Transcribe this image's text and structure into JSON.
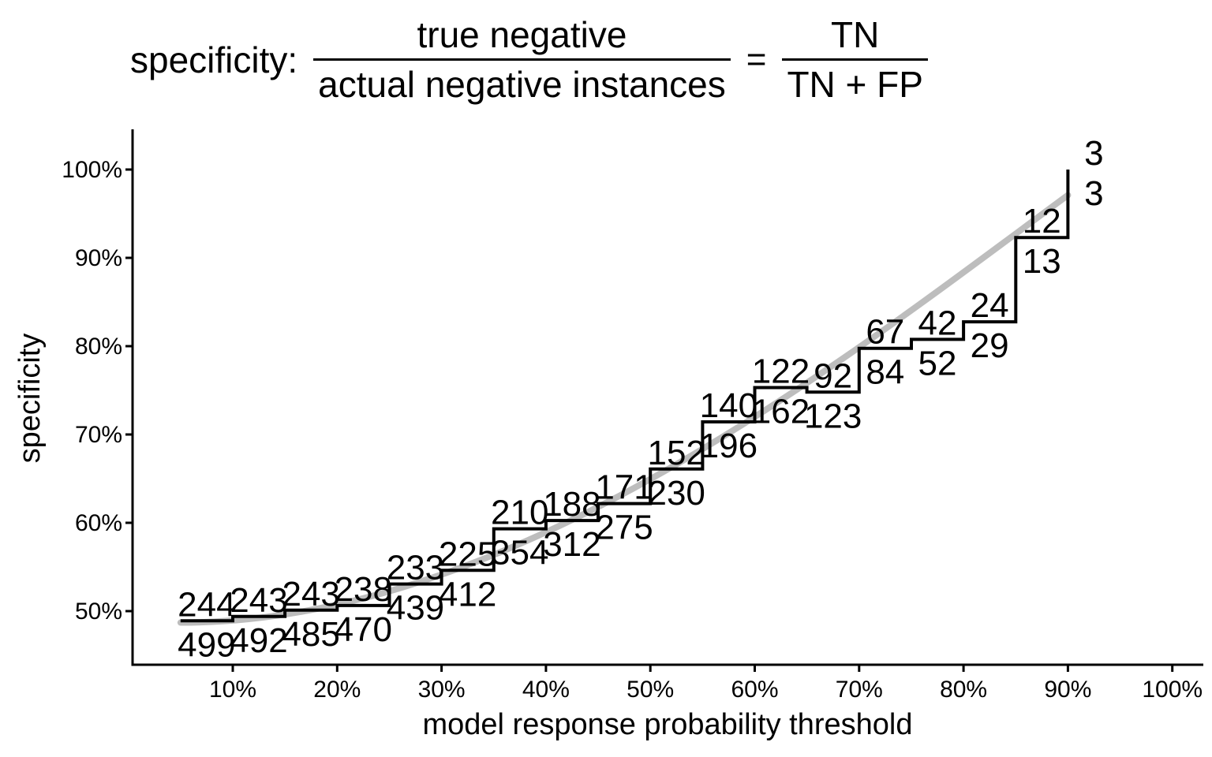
{
  "title": {
    "label": "specificity:",
    "fraction_words": {
      "numerator": "true negative",
      "denominator": "actual negative instances"
    },
    "equals": "=",
    "fraction_symbols": {
      "numerator": "TN",
      "denominator": "TN + FP"
    }
  },
  "chart_data": {
    "type": "step",
    "title": "specificity: true negative / actual negative instances = TN / (TN + FP)",
    "xlabel": "model response probability threshold",
    "ylabel": "specificity",
    "x_ticks": [
      {
        "value": 10,
        "label": "10%"
      },
      {
        "value": 20,
        "label": "20%"
      },
      {
        "value": 30,
        "label": "30%"
      },
      {
        "value": 40,
        "label": "40%"
      },
      {
        "value": 50,
        "label": "50%"
      },
      {
        "value": 60,
        "label": "60%"
      },
      {
        "value": 70,
        "label": "70%"
      },
      {
        "value": 80,
        "label": "80%"
      },
      {
        "value": 90,
        "label": "90%"
      },
      {
        "value": 100,
        "label": "100%"
      }
    ],
    "y_ticks": [
      {
        "value": 50,
        "label": "50%"
      },
      {
        "value": 60,
        "label": "60%"
      },
      {
        "value": 70,
        "label": "70%"
      },
      {
        "value": 80,
        "label": "80%"
      },
      {
        "value": 90,
        "label": "90%"
      },
      {
        "value": 100,
        "label": "100%"
      }
    ],
    "x_range_pct": [
      0,
      103
    ],
    "y_range_pct": [
      44,
      104
    ],
    "grid": "off",
    "legend": "none",
    "step_color": "#000000",
    "steps": [
      {
        "threshold_pct": 5,
        "tn": 244,
        "tn_plus_fp": 499
      },
      {
        "threshold_pct": 10,
        "tn": 243,
        "tn_plus_fp": 492
      },
      {
        "threshold_pct": 15,
        "tn": 243,
        "tn_plus_fp": 485
      },
      {
        "threshold_pct": 20,
        "tn": 238,
        "tn_plus_fp": 470
      },
      {
        "threshold_pct": 25,
        "tn": 233,
        "tn_plus_fp": 439
      },
      {
        "threshold_pct": 30,
        "tn": 225,
        "tn_plus_fp": 412
      },
      {
        "threshold_pct": 35,
        "tn": 210,
        "tn_plus_fp": 354
      },
      {
        "threshold_pct": 40,
        "tn": 188,
        "tn_plus_fp": 312
      },
      {
        "threshold_pct": 45,
        "tn": 171,
        "tn_plus_fp": 275
      },
      {
        "threshold_pct": 50,
        "tn": 152,
        "tn_plus_fp": 230
      },
      {
        "threshold_pct": 55,
        "tn": 140,
        "tn_plus_fp": 196
      },
      {
        "threshold_pct": 60,
        "tn": 122,
        "tn_plus_fp": 162
      },
      {
        "threshold_pct": 65,
        "tn": 92,
        "tn_plus_fp": 123
      },
      {
        "threshold_pct": 70,
        "tn": 67,
        "tn_plus_fp": 84
      },
      {
        "threshold_pct": 75,
        "tn": 42,
        "tn_plus_fp": 52
      },
      {
        "threshold_pct": 80,
        "tn": 24,
        "tn_plus_fp": 29
      },
      {
        "threshold_pct": 85,
        "tn": 12,
        "tn_plus_fp": 13
      },
      {
        "threshold_pct": 90,
        "tn": 3,
        "tn_plus_fp": 3
      }
    ],
    "smooth_trend": {
      "color": "#bdbdbd",
      "start": {
        "threshold_pct": 5,
        "specificity_pct": 48.7
      },
      "end": {
        "threshold_pct": 90,
        "specificity_pct": 97.1
      },
      "shape": "smooth convex loess-like curve"
    }
  }
}
